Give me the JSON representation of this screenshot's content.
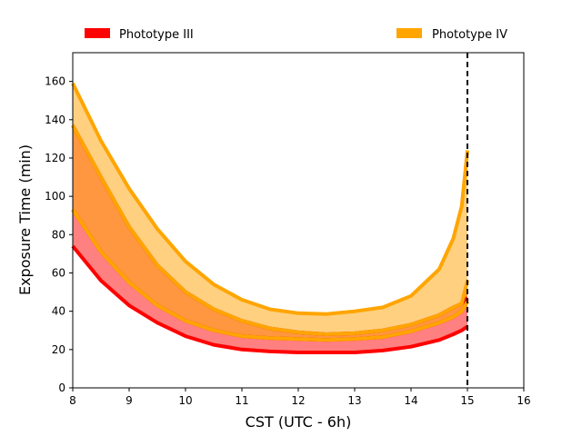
{
  "chart_data": {
    "type": "area",
    "title": "",
    "xlabel": "CST (UTC - 6h)",
    "ylabel": "Exposure Time (min)",
    "xlim": [
      8,
      16
    ],
    "ylim": [
      0,
      175
    ],
    "x_ticks": [
      "8",
      "9",
      "10",
      "11",
      "12",
      "13",
      "14",
      "15",
      "16"
    ],
    "y_ticks": [
      "0",
      "20",
      "40",
      "60",
      "80",
      "100",
      "120",
      "140",
      "160"
    ],
    "legend_placement": "top, above plot",
    "legend": [
      {
        "label": "Phototype III",
        "color": "#ff0000"
      },
      {
        "label": "Phototype IV",
        "color": "#ffa500"
      }
    ],
    "vline": {
      "x": 15,
      "style": "dashed",
      "color": "#000000"
    },
    "x": [
      8,
      8.5,
      9,
      9.5,
      10,
      10.5,
      11,
      11.5,
      12,
      12.5,
      13,
      13.5,
      14,
      14.5,
      14.75,
      14.9,
      15
    ],
    "series": [
      {
        "name": "Phototype III",
        "color": "#ff0000",
        "fill_lower": "#ff8080",
        "fill_upper": "#ff9640",
        "lower": [
          74,
          56,
          43,
          34,
          27,
          22.5,
          20,
          19,
          18.5,
          18.5,
          18.5,
          19.5,
          21.5,
          25,
          28,
          30,
          32
        ],
        "middle": [
          93,
          71,
          55,
          43,
          35,
          30,
          27,
          26,
          25.5,
          25,
          25.5,
          26.5,
          29.5,
          34,
          37,
          40,
          45
        ],
        "upper": [
          137,
          110,
          84,
          64,
          50,
          41,
          35,
          31,
          29,
          28,
          28.5,
          30,
          33,
          38,
          42,
          44,
          47
        ]
      },
      {
        "name": "Phototype IV",
        "color": "#ffa500",
        "fill_lower": "#ff9640",
        "fill_upper": "#ffd080",
        "lower": [
          93,
          71,
          55,
          43,
          35,
          30,
          27,
          26,
          25.5,
          25,
          25.5,
          26.5,
          29.5,
          34,
          37,
          40,
          45
        ],
        "middle": [
          137,
          110,
          84,
          64,
          50,
          41,
          35,
          31,
          29,
          28,
          28.5,
          30,
          33,
          38,
          42,
          44,
          56
        ],
        "upper": [
          159,
          129,
          104,
          83,
          66,
          54,
          46,
          41,
          39,
          38.5,
          40,
          42,
          48,
          62,
          78,
          95,
          124
        ]
      }
    ]
  }
}
